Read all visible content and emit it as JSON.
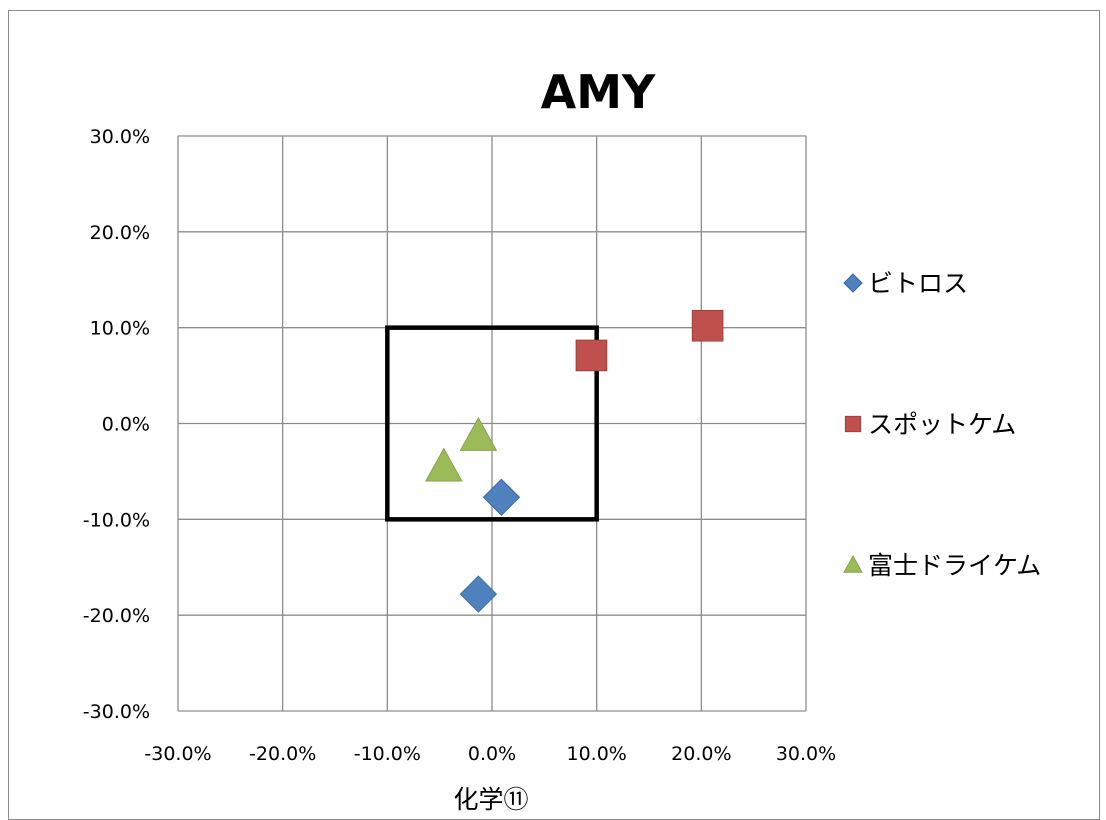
{
  "chart_data": {
    "type": "scatter",
    "title": "AMY",
    "xlabel": "化学⑪",
    "ylabel": "",
    "xlim": [
      -0.3,
      0.3
    ],
    "ylim": [
      -0.3,
      0.3
    ],
    "x_ticks": [
      "-30.0%",
      "-20.0%",
      "-10.0%",
      "0.0%",
      "10.0%",
      "20.0%",
      "30.0%"
    ],
    "y_ticks": [
      "-30.0%",
      "-20.0%",
      "-10.0%",
      "0.0%",
      "10.0%",
      "20.0%",
      "30.0%"
    ],
    "grid": true,
    "legend_position": "right",
    "series": [
      {
        "name": "ビトロス",
        "marker": "diamond",
        "color": "#4F81BD",
        "points": [
          [
            0.009,
            -0.077
          ],
          [
            -0.013,
            -0.178
          ]
        ]
      },
      {
        "name": "スポットケム",
        "marker": "square",
        "color": "#C0504D",
        "points": [
          [
            0.095,
            0.071
          ],
          [
            0.206,
            0.102
          ]
        ]
      },
      {
        "name": "富士ドライケム",
        "marker": "triangle",
        "color": "#9BBB59",
        "points": [
          [
            -0.013,
            -0.013
          ],
          [
            -0.046,
            -0.045
          ]
        ]
      }
    ],
    "annotations": [
      {
        "type": "rectangle",
        "x": [
          -0.1,
          0.1
        ],
        "y": [
          -0.1,
          0.1
        ],
        "color": "#000000"
      }
    ]
  }
}
